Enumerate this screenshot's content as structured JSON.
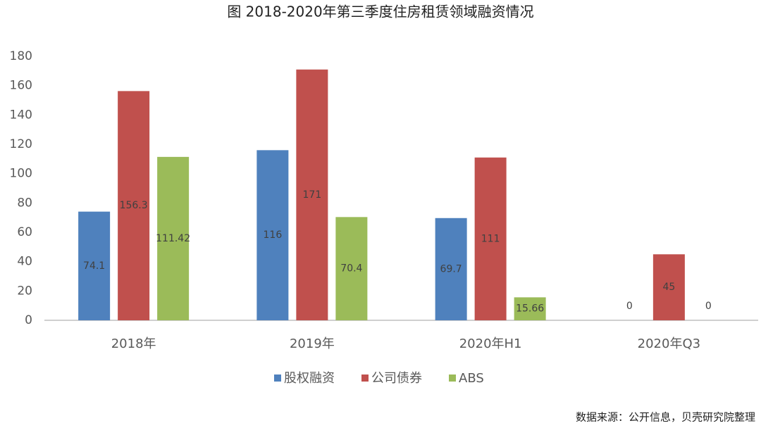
{
  "chart_data": {
    "type": "bar",
    "title": "图 2018-2020年第三季度住房租赁领域融资情况",
    "categories": [
      "2018年",
      "2019年",
      "2020年H1",
      "2020年Q3"
    ],
    "series": [
      {
        "name": "股权融资",
        "color": "#4f81bd",
        "values": [
          74.1,
          116,
          69.7,
          0
        ]
      },
      {
        "name": "公司债券",
        "color": "#c0504d",
        "values": [
          156.3,
          171,
          111,
          45
        ]
      },
      {
        "name": "ABS",
        "color": "#9bbb59",
        "values": [
          111.42,
          70.4,
          15.66,
          0
        ]
      }
    ],
    "ylim": [
      0,
      180
    ],
    "yticks": [
      0,
      20,
      40,
      60,
      80,
      100,
      120,
      140,
      160,
      180
    ],
    "grid": false,
    "legend": "bottom",
    "source": "数据来源：公开信息，贝壳研究院整理"
  }
}
